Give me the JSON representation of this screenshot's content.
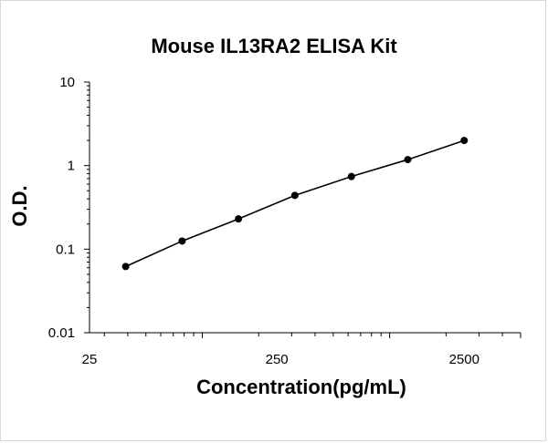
{
  "chart_data": {
    "type": "scatter",
    "title": "Mouse IL13RA2 ELISA Kit",
    "xlabel": "Concentration(pg/mL)",
    "ylabel": "O.D.",
    "x_scale": "log",
    "y_scale": "log",
    "xlim": [
      25,
      5000
    ],
    "ylim": [
      0.01,
      10
    ],
    "x_ticks": [
      25,
      250,
      2500
    ],
    "y_ticks": [
      0.01,
      0.1,
      1,
      10
    ],
    "grid": false,
    "legend": "none",
    "color": "#000000",
    "series": [
      {
        "x": [
          39,
          78,
          156,
          312,
          625,
          1250,
          2500
        ],
        "y": [
          0.062,
          0.125,
          0.23,
          0.44,
          0.74,
          1.18,
          2.0
        ]
      }
    ]
  }
}
